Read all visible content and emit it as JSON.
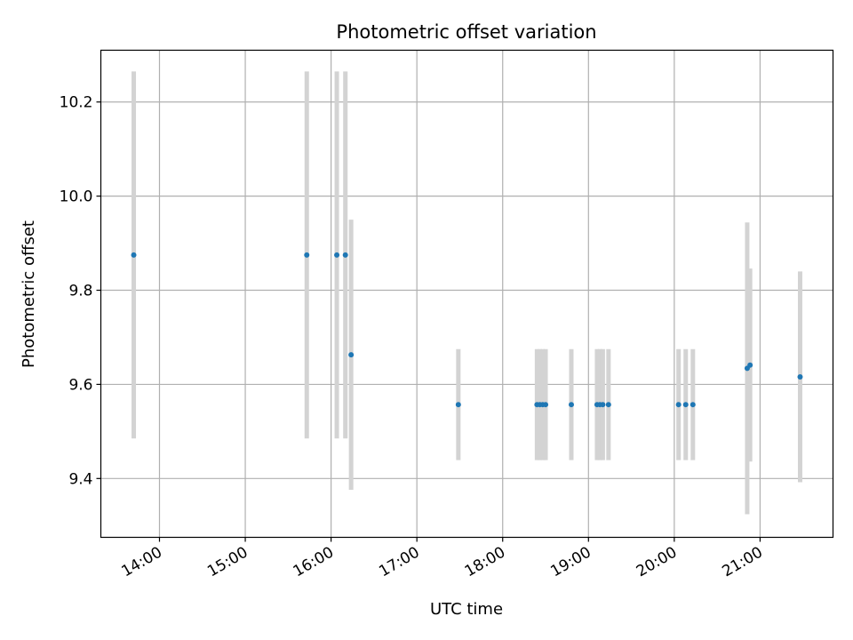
{
  "chart_data": {
    "type": "scatter",
    "title": "Photometric offset variation",
    "xlabel": "UTC time",
    "ylabel": "Photometric offset",
    "x_ticks": [
      "14:00",
      "15:00",
      "16:00",
      "17:00",
      "18:00",
      "19:00",
      "20:00",
      "21:00"
    ],
    "y_ticks": [
      "9.4",
      "9.6",
      "9.8",
      "10.0",
      "10.2"
    ],
    "xlim": [
      "13:19",
      "21:51"
    ],
    "ylim": [
      9.275,
      10.31
    ],
    "grid": true,
    "colors": {
      "point": "#1f77b4",
      "errorbar": "#d3d3d3",
      "grid": "#b0b0b0"
    },
    "points": [
      {
        "x": "13:42",
        "y": 9.875,
        "err": 0.39
      },
      {
        "x": "15:43",
        "y": 9.875,
        "err": 0.39
      },
      {
        "x": "16:04",
        "y": 9.875,
        "err": 0.39
      },
      {
        "x": "16:10",
        "y": 9.875,
        "err": 0.39
      },
      {
        "x": "16:14",
        "y": 9.663,
        "err": 0.287
      },
      {
        "x": "17:29",
        "y": 9.557,
        "err": 0.118
      },
      {
        "x": "18:24",
        "y": 9.557,
        "err": 0.118
      },
      {
        "x": "18:26",
        "y": 9.557,
        "err": 0.118
      },
      {
        "x": "18:28",
        "y": 9.557,
        "err": 0.118
      },
      {
        "x": "18:30",
        "y": 9.557,
        "err": 0.118
      },
      {
        "x": "18:48",
        "y": 9.557,
        "err": 0.118
      },
      {
        "x": "19:06",
        "y": 9.557,
        "err": 0.118
      },
      {
        "x": "19:08",
        "y": 9.557,
        "err": 0.118
      },
      {
        "x": "19:10",
        "y": 9.557,
        "err": 0.118
      },
      {
        "x": "19:14",
        "y": 9.557,
        "err": 0.118
      },
      {
        "x": "20:03",
        "y": 9.557,
        "err": 0.118
      },
      {
        "x": "20:08",
        "y": 9.557,
        "err": 0.118
      },
      {
        "x": "20:13",
        "y": 9.557,
        "err": 0.118
      },
      {
        "x": "20:51",
        "y": 9.634,
        "err": 0.31
      },
      {
        "x": "20:53",
        "y": 9.641,
        "err": 0.205
      },
      {
        "x": "21:28",
        "y": 9.616,
        "err": 0.224
      }
    ]
  }
}
